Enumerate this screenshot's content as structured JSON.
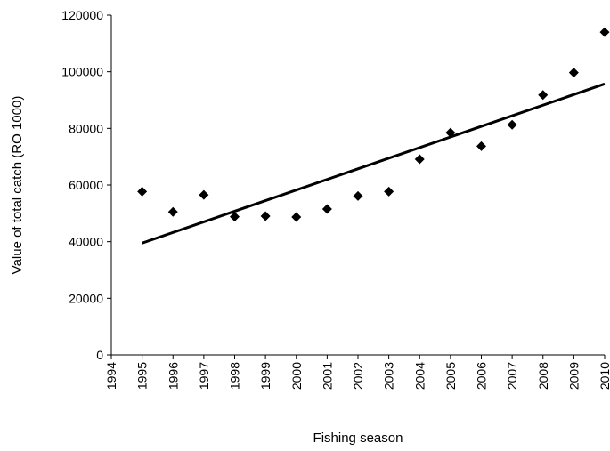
{
  "chart_data": {
    "type": "scatter",
    "title": "",
    "xlabel": "Fishing season",
    "ylabel": "Value of total catch (RO 1000)",
    "xlim": [
      1994,
      2010
    ],
    "ylim": [
      0,
      120000
    ],
    "xticks": [
      1994,
      1995,
      1996,
      1997,
      1998,
      1999,
      2000,
      2001,
      2002,
      2003,
      2004,
      2005,
      2006,
      2007,
      2008,
      2009,
      2010
    ],
    "yticks": [
      0,
      20000,
      40000,
      60000,
      80000,
      100000,
      120000
    ],
    "grid": false,
    "legend": "none",
    "series": [
      {
        "marker": "diamond",
        "color": "#000000",
        "points": [
          {
            "x": 1995,
            "y": 57700
          },
          {
            "x": 1996,
            "y": 50500
          },
          {
            "x": 1997,
            "y": 56500
          },
          {
            "x": 1998,
            "y": 48800
          },
          {
            "x": 1999,
            "y": 49000
          },
          {
            "x": 2000,
            "y": 48700
          },
          {
            "x": 2001,
            "y": 51500
          },
          {
            "x": 2002,
            "y": 56100
          },
          {
            "x": 2003,
            "y": 57700
          },
          {
            "x": 2004,
            "y": 69100
          },
          {
            "x": 2005,
            "y": 78500
          },
          {
            "x": 2006,
            "y": 73700
          },
          {
            "x": 2007,
            "y": 81300
          },
          {
            "x": 2008,
            "y": 91800
          },
          {
            "x": 2009,
            "y": 99700
          },
          {
            "x": 2010,
            "y": 114000
          }
        ]
      }
    ],
    "trendline": {
      "type": "linear",
      "color": "#000000",
      "x": [
        1995,
        2010
      ],
      "y": [
        39500,
        95700
      ]
    }
  }
}
